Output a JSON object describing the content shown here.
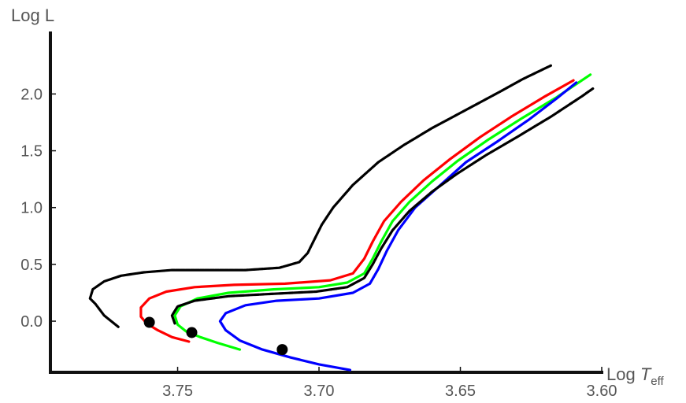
{
  "chart_data": {
    "type": "line",
    "title": "",
    "xlabel": {
      "prefix": "Log ",
      "main": "T",
      "sub": "eff"
    },
    "ylabel": "Log L",
    "xlim": [
      3.795,
      3.6
    ],
    "ylim": [
      -0.45,
      2.55
    ],
    "x_reversed": true,
    "grid": false,
    "x_ticks": [
      {
        "value": 3.75,
        "label": "3.75"
      },
      {
        "value": 3.7,
        "label": "3.70"
      },
      {
        "value": 3.65,
        "label": "3.65"
      },
      {
        "value": 3.6,
        "label": "3.60"
      }
    ],
    "y_ticks": [
      {
        "value": 0.0,
        "label": "0.0"
      },
      {
        "value": 0.5,
        "label": "0.5"
      },
      {
        "value": 1.0,
        "label": "1.0"
      },
      {
        "value": 1.5,
        "label": "1.5"
      },
      {
        "value": 2.0,
        "label": "2.0"
      }
    ],
    "series": [
      {
        "color": "#000000",
        "style": "dashed",
        "x": [
          3.771,
          3.776,
          3.779,
          3.781,
          3.78,
          3.776,
          3.77,
          3.762,
          3.752,
          3.74,
          3.726,
          3.714,
          3.707,
          3.704,
          3.702,
          3.699,
          3.695,
          3.688,
          3.679,
          3.67,
          3.66,
          3.648,
          3.636,
          3.628,
          3.618
        ],
        "y": [
          -0.05,
          0.05,
          0.15,
          0.2,
          0.28,
          0.35,
          0.4,
          0.43,
          0.45,
          0.45,
          0.45,
          0.47,
          0.52,
          0.6,
          0.7,
          0.85,
          1.0,
          1.2,
          1.4,
          1.55,
          1.7,
          1.86,
          2.02,
          2.13,
          2.25
        ]
      },
      {
        "color": "#ff0000",
        "style": "solid",
        "x": [
          3.746,
          3.752,
          3.757,
          3.761,
          3.763,
          3.763,
          3.76,
          3.754,
          3.744,
          3.73,
          3.712,
          3.696,
          3.688,
          3.684,
          3.681,
          3.677,
          3.671,
          3.663,
          3.654,
          3.643,
          3.632,
          3.62,
          3.61
        ],
        "y": [
          -0.18,
          -0.14,
          -0.08,
          -0.02,
          0.04,
          0.12,
          0.2,
          0.26,
          0.3,
          0.32,
          0.33,
          0.36,
          0.42,
          0.55,
          0.7,
          0.88,
          1.05,
          1.24,
          1.42,
          1.62,
          1.8,
          1.98,
          2.12
        ]
      },
      {
        "color": "#00ff00",
        "style": "solid",
        "x": [
          3.728,
          3.736,
          3.742,
          3.747,
          3.75,
          3.751,
          3.749,
          3.743,
          3.732,
          3.716,
          3.7,
          3.69,
          3.684,
          3.681,
          3.678,
          3.674,
          3.668,
          3.66,
          3.651,
          3.64,
          3.628,
          3.616,
          3.604
        ],
        "y": [
          -0.25,
          -0.19,
          -0.14,
          -0.09,
          -0.03,
          0.05,
          0.13,
          0.2,
          0.25,
          0.28,
          0.3,
          0.34,
          0.42,
          0.55,
          0.7,
          0.88,
          1.05,
          1.23,
          1.41,
          1.6,
          1.79,
          1.97,
          2.17
        ]
      },
      {
        "color": "#0000ff",
        "style": "solid",
        "x": [
          3.689,
          3.7,
          3.71,
          3.72,
          3.728,
          3.733,
          3.735,
          3.733,
          3.726,
          3.715,
          3.7,
          3.688,
          3.682,
          3.679,
          3.676,
          3.672,
          3.666,
          3.657,
          3.648,
          3.637,
          3.626,
          3.616,
          3.609
        ],
        "y": [
          -0.43,
          -0.38,
          -0.32,
          -0.25,
          -0.17,
          -0.08,
          0.0,
          0.07,
          0.14,
          0.18,
          0.2,
          0.25,
          0.33,
          0.46,
          0.62,
          0.8,
          1.0,
          1.2,
          1.4,
          1.58,
          1.77,
          1.96,
          2.1
        ]
      },
      {
        "color": "#000000",
        "style": "dashed",
        "x": [
          3.751,
          3.752,
          3.75,
          3.744,
          3.732,
          3.717,
          3.701,
          3.69,
          3.684,
          3.681,
          3.678,
          3.674,
          3.668,
          3.66,
          3.651,
          3.641,
          3.63,
          3.618,
          3.607,
          3.603
        ],
        "y": [
          -0.02,
          0.05,
          0.13,
          0.18,
          0.22,
          0.24,
          0.26,
          0.3,
          0.38,
          0.5,
          0.64,
          0.8,
          0.97,
          1.14,
          1.3,
          1.46,
          1.62,
          1.8,
          1.98,
          2.05
        ]
      }
    ],
    "markers": [
      {
        "x": 3.76,
        "y": -0.01
      },
      {
        "x": 3.745,
        "y": -0.1
      },
      {
        "x": 3.713,
        "y": -0.25
      }
    ]
  }
}
